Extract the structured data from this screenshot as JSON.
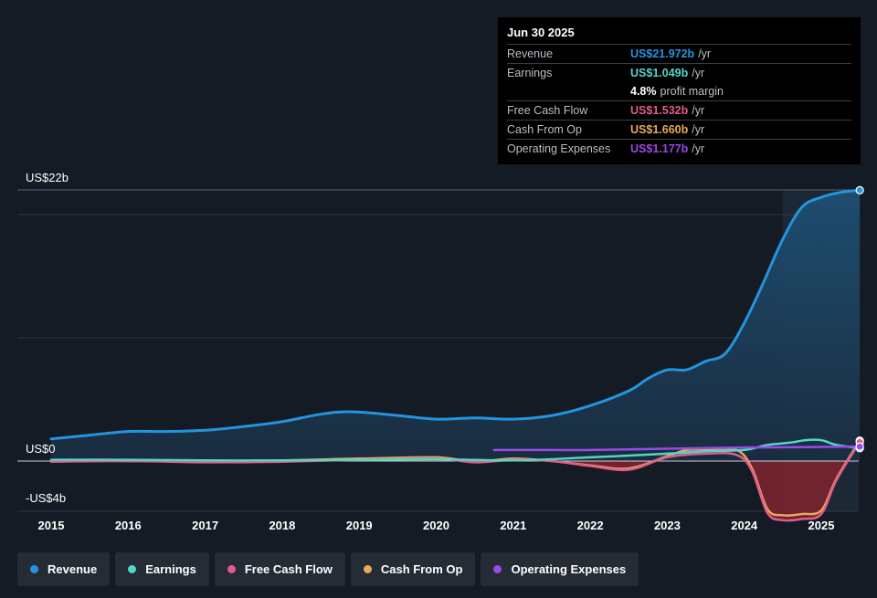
{
  "chart_data": {
    "type": "line",
    "ylim": [
      -4,
      22
    ],
    "ytick_labels": [
      "US$22b",
      "US$0",
      "-US$4b"
    ],
    "x_ticks": [
      "2015",
      "2016",
      "2017",
      "2018",
      "2019",
      "2020",
      "2021",
      "2022",
      "2023",
      "2024",
      "2025"
    ],
    "series": [
      {
        "name": "Revenue",
        "color": "#2394df",
        "area": true,
        "x": [
          2015.0,
          2015.5,
          2016.0,
          2016.5,
          2017.0,
          2017.5,
          2018.0,
          2018.5,
          2018.9,
          2019.5,
          2020.0,
          2020.5,
          2021.0,
          2021.5,
          2022.0,
          2022.5,
          2022.75,
          2023.0,
          2023.25,
          2023.5,
          2023.75,
          2024.0,
          2024.25,
          2024.5,
          2024.75,
          2025.0,
          2025.25,
          2025.5
        ],
        "values": [
          1.8,
          2.1,
          2.4,
          2.4,
          2.5,
          2.8,
          3.2,
          3.8,
          4.0,
          3.7,
          3.4,
          3.5,
          3.4,
          3.7,
          4.5,
          5.7,
          6.7,
          7.4,
          7.4,
          8.1,
          8.7,
          11.2,
          14.5,
          18.0,
          20.6,
          21.4,
          21.8,
          21.97
        ]
      },
      {
        "name": "Earnings",
        "color": "#54d6c4",
        "x": [
          2015.0,
          2016.0,
          2017.0,
          2018.0,
          2019.0,
          2020.0,
          2021.0,
          2022.0,
          2023.0,
          2023.5,
          2024.0,
          2024.3,
          2024.6,
          2024.8,
          2025.0,
          2025.2,
          2025.5
        ],
        "values": [
          0.1,
          0.1,
          0.05,
          0.05,
          0.1,
          0.15,
          0.05,
          0.3,
          0.6,
          0.8,
          0.9,
          1.3,
          1.5,
          1.7,
          1.7,
          1.3,
          1.049
        ]
      },
      {
        "name": "Free Cash Flow",
        "color": "#e05c8e",
        "fill_negative": "#7a2330",
        "x": [
          2015.0,
          2016.0,
          2017.0,
          2018.0,
          2019.0,
          2020.0,
          2020.5,
          2021.0,
          2021.5,
          2022.0,
          2022.5,
          2023.0,
          2023.5,
          2023.9,
          2024.1,
          2024.3,
          2024.5,
          2024.75,
          2025.0,
          2025.2,
          2025.5
        ],
        "values": [
          -0.05,
          0.0,
          -0.1,
          -0.05,
          0.1,
          0.2,
          -0.1,
          0.1,
          0.0,
          -0.4,
          -0.7,
          0.3,
          0.6,
          0.5,
          -0.8,
          -4.2,
          -4.8,
          -4.7,
          -4.3,
          -1.5,
          1.532
        ]
      },
      {
        "name": "Cash From Op",
        "color": "#e9a85c",
        "x": [
          2015.0,
          2016.0,
          2017.0,
          2018.0,
          2019.0,
          2020.0,
          2020.5,
          2021.0,
          2021.5,
          2022.0,
          2022.5,
          2023.0,
          2023.25,
          2023.5,
          2023.9,
          2024.1,
          2024.3,
          2024.5,
          2024.75,
          2025.0,
          2025.2,
          2025.5
        ],
        "values": [
          0.05,
          0.0,
          0.0,
          0.05,
          0.2,
          0.3,
          -0.05,
          0.2,
          0.0,
          -0.35,
          -0.6,
          0.4,
          0.9,
          0.95,
          0.9,
          -0.6,
          -3.9,
          -4.4,
          -4.3,
          -4.0,
          -1.4,
          1.66
        ]
      },
      {
        "name": "Operating Expenses",
        "color": "#9a4ae6",
        "x": [
          2020.75,
          2021.5,
          2022.0,
          2022.5,
          2023.0,
          2023.5,
          2024.0,
          2024.5,
          2025.0,
          2025.5
        ],
        "values": [
          0.9,
          0.9,
          0.9,
          0.95,
          1.0,
          1.05,
          1.1,
          1.12,
          1.15,
          1.177
        ]
      }
    ]
  },
  "tooltip": {
    "date": "Jun 30 2025",
    "rows": [
      {
        "label": "Revenue",
        "value": "US$21.972b",
        "unit": "/yr",
        "color": "#2394df"
      },
      {
        "label": "Earnings",
        "value": "US$1.049b",
        "unit": "/yr",
        "color": "#54d6c4"
      },
      {
        "label": "",
        "value": "4.8%",
        "unit": "profit margin",
        "color": "#ffffff"
      },
      {
        "label": "Free Cash Flow",
        "value": "US$1.532b",
        "unit": "/yr",
        "color": "#e05c8e"
      },
      {
        "label": "Cash From Op",
        "value": "US$1.660b",
        "unit": "/yr",
        "color": "#e9a85c"
      },
      {
        "label": "Operating Expenses",
        "value": "US$1.177b",
        "unit": "/yr",
        "color": "#9a4ae6"
      }
    ]
  },
  "legend": [
    {
      "label": "Revenue",
      "color": "#2394df"
    },
    {
      "label": "Earnings",
      "color": "#54d6c4"
    },
    {
      "label": "Free Cash Flow",
      "color": "#e05c8e"
    },
    {
      "label": "Cash From Op",
      "color": "#e9a85c"
    },
    {
      "label": "Operating Expenses",
      "color": "#9a4ae6"
    }
  ]
}
